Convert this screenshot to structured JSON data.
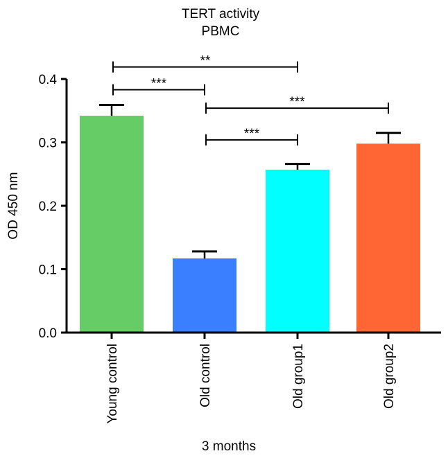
{
  "chart_data": {
    "type": "bar",
    "title": "TERT activity",
    "subtitle": "PBMC",
    "xlabel": "3 months",
    "ylabel": "OD 450 nm",
    "ylim": [
      0,
      0.4
    ],
    "yticks": [
      "0.0",
      "0.1",
      "0.2",
      "0.3",
      "0.4"
    ],
    "categories": [
      "Young control",
      "Old control",
      "Old group1",
      "Old group2"
    ],
    "values": [
      0.342,
      0.117,
      0.257,
      0.298
    ],
    "errors": [
      0.017,
      0.011,
      0.009,
      0.017
    ],
    "colors": [
      "#66cc66",
      "#3a7fff",
      "#00ffff",
      "#ff6633"
    ],
    "significance": [
      {
        "from": 0,
        "to": 2,
        "label": "**",
        "y": 0.419
      },
      {
        "from": 0,
        "to": 1,
        "label": "***",
        "y": 0.383
      },
      {
        "from": 1,
        "to": 3,
        "label": "***",
        "y": 0.354
      },
      {
        "from": 1,
        "to": 2,
        "label": "***",
        "y": 0.304
      }
    ]
  }
}
